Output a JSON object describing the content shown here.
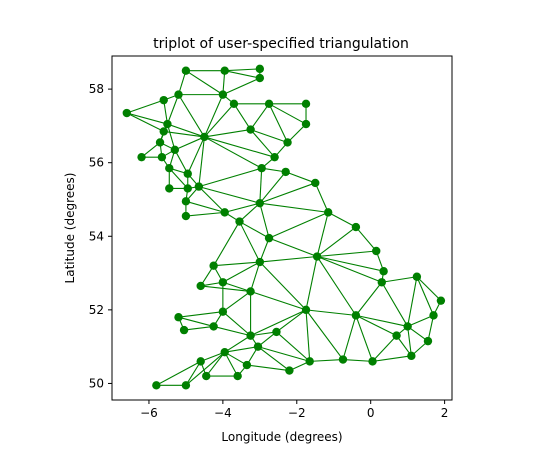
{
  "chart_data": {
    "type": "scatter",
    "title": "triplot of user-specified triangulation",
    "xlabel": "Longitude (degrees)",
    "ylabel": "Latitude (degrees)",
    "xlim": [
      -7.0,
      2.2
    ],
    "ylim": [
      49.55,
      58.9
    ],
    "xticks": [
      -6,
      -4,
      -2,
      0,
      2
    ],
    "xtick_labels": [
      "−6",
      "−4",
      "−2",
      "0",
      "2"
    ],
    "yticks": [
      50,
      52,
      54,
      56,
      58
    ],
    "ytick_labels": [
      "50",
      "52",
      "54",
      "56",
      "58"
    ],
    "grid": false,
    "color": "#008000",
    "points": [
      [
        -5.0,
        58.5
      ],
      [
        -3.95,
        58.5
      ],
      [
        -3.0,
        58.55
      ],
      [
        -3.0,
        58.3
      ],
      [
        -5.2,
        57.85
      ],
      [
        -4.0,
        57.85
      ],
      [
        -5.6,
        57.7
      ],
      [
        -3.7,
        57.6
      ],
      [
        -2.75,
        57.6
      ],
      [
        -1.75,
        57.6
      ],
      [
        -6.6,
        57.35
      ],
      [
        -5.5,
        57.05
      ],
      [
        -1.75,
        57.05
      ],
      [
        -5.6,
        56.85
      ],
      [
        -3.25,
        56.9
      ],
      [
        -4.5,
        56.7
      ],
      [
        -2.25,
        56.55
      ],
      [
        -5.7,
        56.55
      ],
      [
        -5.3,
        56.35
      ],
      [
        -2.6,
        56.15
      ],
      [
        -6.2,
        56.15
      ],
      [
        -5.65,
        56.15
      ],
      [
        -5.45,
        55.85
      ],
      [
        -2.95,
        55.85
      ],
      [
        -2.3,
        55.75
      ],
      [
        -4.95,
        55.7
      ],
      [
        -1.5,
        55.45
      ],
      [
        -4.65,
        55.35
      ],
      [
        -5.45,
        55.3
      ],
      [
        -4.95,
        55.3
      ],
      [
        -5.0,
        54.95
      ],
      [
        -3.0,
        54.9
      ],
      [
        -1.15,
        54.65
      ],
      [
        -3.95,
        54.65
      ],
      [
        -5.0,
        54.55
      ],
      [
        -3.55,
        54.4
      ],
      [
        -0.4,
        54.25
      ],
      [
        -2.75,
        53.95
      ],
      [
        -1.45,
        53.45
      ],
      [
        0.15,
        53.6
      ],
      [
        -4.25,
        53.2
      ],
      [
        -3.0,
        53.3
      ],
      [
        0.35,
        53.05
      ],
      [
        -4.0,
        52.75
      ],
      [
        -4.6,
        52.65
      ],
      [
        0.3,
        52.75
      ],
      [
        1.25,
        52.9
      ],
      [
        -3.25,
        52.5
      ],
      [
        1.9,
        52.25
      ],
      [
        -1.75,
        52.0
      ],
      [
        -4.0,
        51.95
      ],
      [
        -5.2,
        51.8
      ],
      [
        -0.4,
        51.85
      ],
      [
        1.7,
        51.85
      ],
      [
        -4.25,
        51.55
      ],
      [
        -5.05,
        51.45
      ],
      [
        1.0,
        51.55
      ],
      [
        -2.55,
        51.4
      ],
      [
        -3.25,
        51.3
      ],
      [
        0.7,
        51.3
      ],
      [
        1.55,
        51.15
      ],
      [
        -3.05,
        51.0
      ],
      [
        -3.95,
        50.85
      ],
      [
        -4.6,
        50.6
      ],
      [
        -1.65,
        50.6
      ],
      [
        -0.75,
        50.65
      ],
      [
        0.05,
        50.6
      ],
      [
        1.1,
        50.75
      ],
      [
        -3.35,
        50.5
      ],
      [
        -2.2,
        50.35
      ],
      [
        -4.45,
        50.2
      ],
      [
        -3.6,
        50.2
      ],
      [
        -5.8,
        49.95
      ],
      [
        -5.0,
        49.95
      ]
    ],
    "triangles": [
      [
        0,
        1,
        5
      ],
      [
        1,
        2,
        3
      ],
      [
        1,
        3,
        5
      ],
      [
        0,
        4,
        5
      ],
      [
        4,
        5,
        15
      ],
      [
        4,
        11,
        15
      ],
      [
        4,
        6,
        11
      ],
      [
        6,
        10,
        11
      ],
      [
        10,
        11,
        13
      ],
      [
        11,
        13,
        15
      ],
      [
        11,
        13,
        17
      ],
      [
        11,
        17,
        18
      ],
      [
        11,
        15,
        18
      ],
      [
        5,
        7,
        15
      ],
      [
        7,
        14,
        15
      ],
      [
        7,
        8,
        14
      ],
      [
        8,
        9,
        12
      ],
      [
        8,
        12,
        16
      ],
      [
        8,
        14,
        16
      ],
      [
        14,
        16,
        19
      ],
      [
        14,
        15,
        19
      ],
      [
        15,
        19,
        23
      ],
      [
        15,
        23,
        27
      ],
      [
        15,
        18,
        25
      ],
      [
        15,
        25,
        27
      ],
      [
        18,
        21,
        22
      ],
      [
        18,
        22,
        25
      ],
      [
        17,
        20,
        21
      ],
      [
        17,
        18,
        21
      ],
      [
        22,
        25,
        29
      ],
      [
        22,
        28,
        29
      ],
      [
        25,
        27,
        29
      ],
      [
        27,
        29,
        30
      ],
      [
        27,
        30,
        33
      ],
      [
        30,
        33,
        34
      ],
      [
        23,
        24,
        31
      ],
      [
        24,
        26,
        31
      ],
      [
        26,
        31,
        32
      ],
      [
        23,
        27,
        31
      ],
      [
        27,
        31,
        33
      ],
      [
        31,
        33,
        35
      ],
      [
        31,
        35,
        37
      ],
      [
        31,
        32,
        37
      ],
      [
        32,
        36,
        38
      ],
      [
        32,
        37,
        38
      ],
      [
        36,
        38,
        39
      ],
      [
        37,
        38,
        41
      ],
      [
        35,
        37,
        41
      ],
      [
        35,
        40,
        41
      ],
      [
        38,
        39,
        42
      ],
      [
        38,
        42,
        45
      ],
      [
        40,
        41,
        43
      ],
      [
        40,
        43,
        44
      ],
      [
        41,
        43,
        47
      ],
      [
        38,
        41,
        49
      ],
      [
        41,
        47,
        49
      ],
      [
        45,
        46,
        56
      ],
      [
        38,
        45,
        52
      ],
      [
        45,
        52,
        56
      ],
      [
        46,
        48,
        53
      ],
      [
        46,
        53,
        56
      ],
      [
        38,
        49,
        52
      ],
      [
        43,
        44,
        47
      ],
      [
        47,
        49,
        58
      ],
      [
        43,
        47,
        50
      ],
      [
        47,
        50,
        58
      ],
      [
        50,
        54,
        58
      ],
      [
        50,
        51,
        54
      ],
      [
        51,
        54,
        55
      ],
      [
        49,
        52,
        65
      ],
      [
        49,
        57,
        58
      ],
      [
        49,
        57,
        64
      ],
      [
        49,
        64,
        65
      ],
      [
        52,
        56,
        59
      ],
      [
        52,
        59,
        66
      ],
      [
        52,
        65,
        66
      ],
      [
        56,
        59,
        67
      ],
      [
        56,
        60,
        67
      ],
      [
        53,
        56,
        60
      ],
      [
        57,
        58,
        61
      ],
      [
        57,
        61,
        64
      ],
      [
        58,
        61,
        62
      ],
      [
        61,
        62,
        68
      ],
      [
        61,
        68,
        69
      ],
      [
        61,
        64,
        69
      ],
      [
        59,
        66,
        67
      ],
      [
        62,
        63,
        70
      ],
      [
        62,
        70,
        71
      ],
      [
        62,
        68,
        71
      ],
      [
        62,
        63,
        73
      ],
      [
        63,
        72,
        73
      ]
    ]
  }
}
